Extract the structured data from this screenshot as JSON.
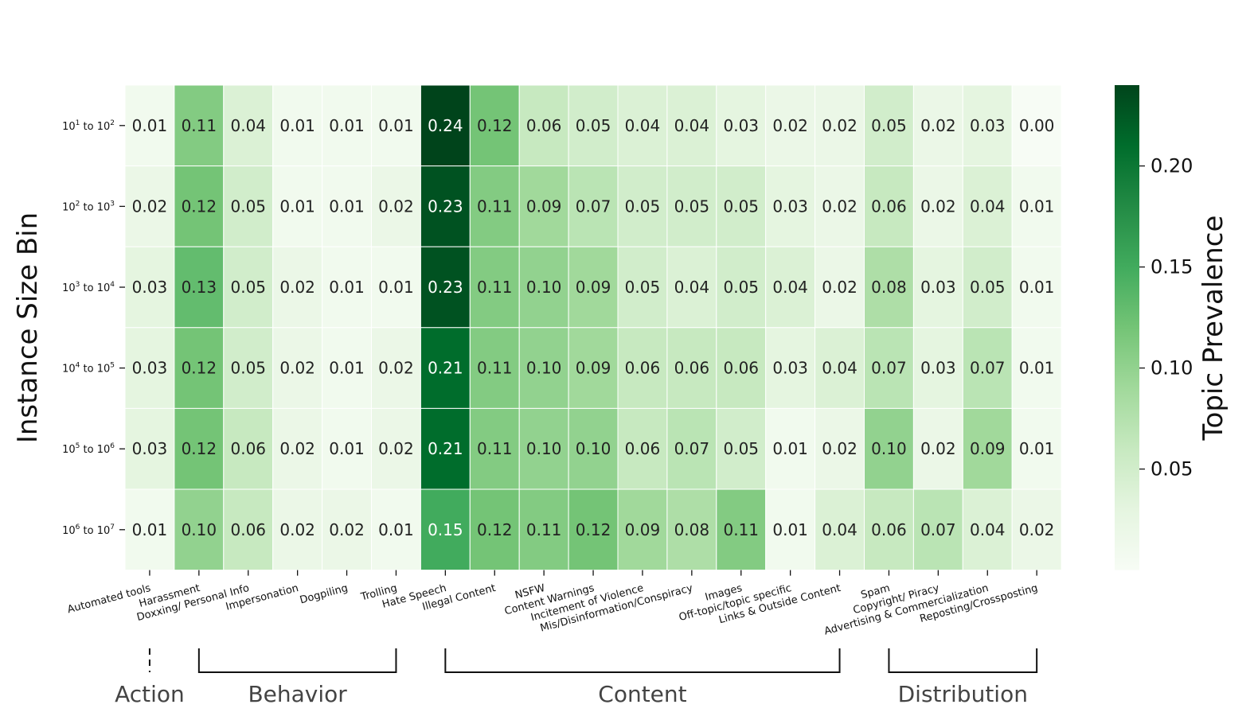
{
  "chart_data": {
    "type": "heatmap",
    "ylabel": "Instance Size Bin",
    "colorbar_label": "Topic Prevalence",
    "colorbar_ticks": [
      0.05,
      0.1,
      0.15,
      0.2
    ],
    "colorbar_tick_labels": [
      "0.05",
      "0.10",
      "0.15",
      "0.20"
    ],
    "color_range": [
      0.0,
      0.24
    ],
    "colormap": "Greens",
    "rows": [
      {
        "base": "10",
        "e1": "1",
        "e2": "2",
        "mid": " to "
      },
      {
        "base": "10",
        "e1": "2",
        "e2": "3",
        "mid": " to "
      },
      {
        "base": "10",
        "e1": "3",
        "e2": "4",
        "mid": " to "
      },
      {
        "base": "10",
        "e1": "4",
        "e2": "5",
        "mid": " to "
      },
      {
        "base": "10",
        "e1": "5",
        "e2": "6",
        "mid": " to "
      },
      {
        "base": "10",
        "e1": "6",
        "e2": "7",
        "mid": " to "
      }
    ],
    "columns": [
      "Automated tools",
      "Harassment",
      "Doxxing/ Personal Info",
      "Impersonation",
      "Dogpiling",
      "Trolling",
      "Hate Speech",
      "Illegal Content",
      "NSFW",
      "Content Warnings",
      "Incitement of Violence",
      "Mis/Disinformation/Conspiracy",
      "Images",
      "Off-topic/topic specific",
      "Links & Outside Content",
      "Spam",
      "Copyright/ Piracy",
      "Advertising & Commercialization",
      "Reposting/Crossposting"
    ],
    "values": [
      [
        0.01,
        0.11,
        0.04,
        0.01,
        0.01,
        0.01,
        0.24,
        0.12,
        0.06,
        0.05,
        0.04,
        0.04,
        0.03,
        0.02,
        0.02,
        0.05,
        0.02,
        0.03,
        0.0
      ],
      [
        0.02,
        0.12,
        0.05,
        0.01,
        0.01,
        0.02,
        0.23,
        0.11,
        0.09,
        0.07,
        0.05,
        0.05,
        0.05,
        0.03,
        0.02,
        0.06,
        0.02,
        0.04,
        0.01
      ],
      [
        0.03,
        0.13,
        0.05,
        0.02,
        0.01,
        0.01,
        0.23,
        0.11,
        0.1,
        0.09,
        0.05,
        0.04,
        0.05,
        0.04,
        0.02,
        0.08,
        0.03,
        0.05,
        0.01
      ],
      [
        0.03,
        0.12,
        0.05,
        0.02,
        0.01,
        0.02,
        0.21,
        0.11,
        0.1,
        0.09,
        0.06,
        0.06,
        0.06,
        0.03,
        0.04,
        0.07,
        0.03,
        0.07,
        0.01
      ],
      [
        0.03,
        0.12,
        0.06,
        0.02,
        0.01,
        0.02,
        0.21,
        0.11,
        0.1,
        0.1,
        0.06,
        0.07,
        0.05,
        0.01,
        0.02,
        0.1,
        0.02,
        0.09,
        0.01
      ],
      [
        0.01,
        0.1,
        0.06,
        0.02,
        0.02,
        0.01,
        0.15,
        0.12,
        0.11,
        0.12,
        0.09,
        0.08,
        0.11,
        0.01,
        0.04,
        0.06,
        0.07,
        0.04,
        0.02
      ]
    ],
    "groups": [
      {
        "label": "Action",
        "from": 0,
        "to": 0
      },
      {
        "label": "Behavior",
        "from": 1,
        "to": 5
      },
      {
        "label": "Content",
        "from": 6,
        "to": 14
      },
      {
        "label": "Distribution",
        "from": 15,
        "to": 18
      }
    ]
  }
}
